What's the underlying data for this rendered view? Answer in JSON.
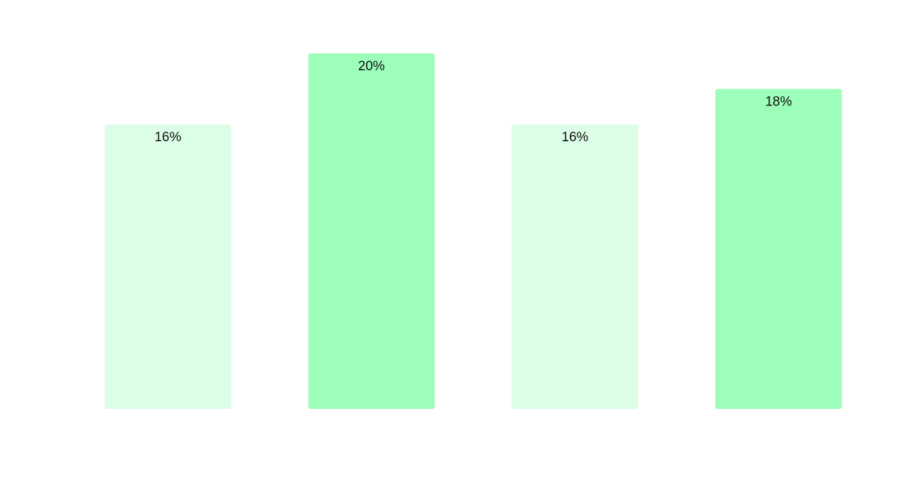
{
  "chart_data": {
    "type": "bar",
    "title": "",
    "xlabel": "",
    "ylabel": "",
    "ylim": [
      0,
      20
    ],
    "grid": false,
    "categories": [],
    "values": [
      16,
      20,
      16,
      18
    ],
    "labels": [
      "16%",
      "20%",
      "16%",
      "18%"
    ],
    "colors": [
      "#dcfde6",
      "#9cfeb9",
      "#dcfde6",
      "#9cfeb9"
    ]
  }
}
